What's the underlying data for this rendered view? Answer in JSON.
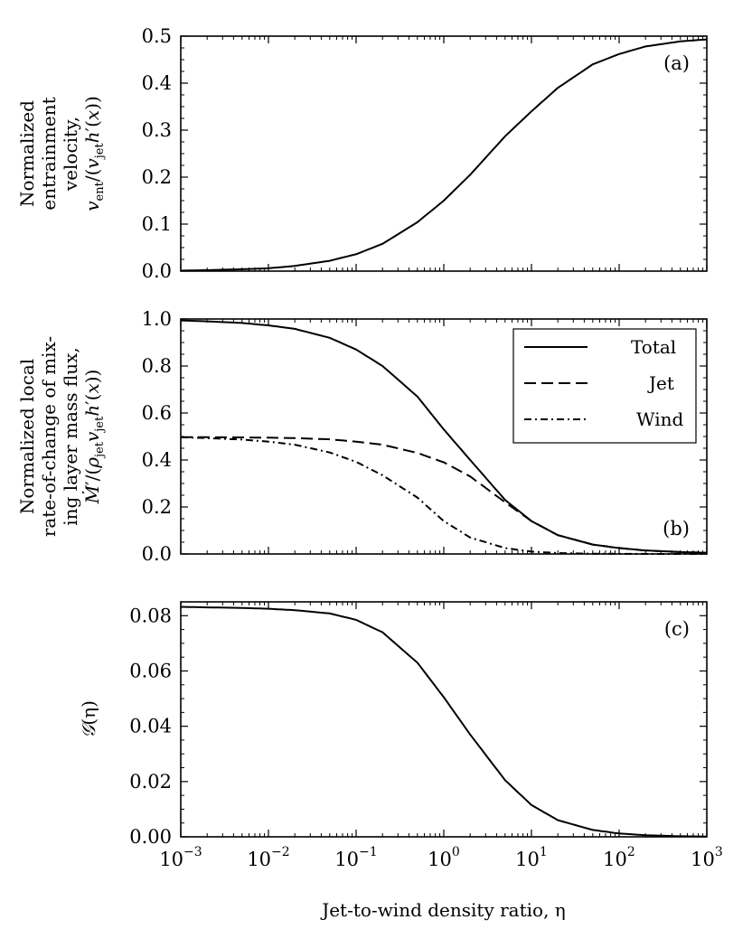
{
  "chart_data": [
    {
      "type": "line",
      "panel_tag": "(a)",
      "ylabel_lines": [
        "Normalized",
        "entrainment",
        "velocity,"
      ],
      "ylim": [
        0.0,
        0.5
      ],
      "yticks": [
        0.0,
        0.1,
        0.2,
        0.3,
        0.4,
        0.5
      ],
      "ytick_labels": [
        "0.0",
        "0.1",
        "0.2",
        "0.3",
        "0.4",
        "0.5"
      ],
      "xscale": "log",
      "xlim": [
        0.001,
        1000
      ],
      "series": [
        {
          "name": "v_ent",
          "style": "solid",
          "x": [
            0.001,
            0.002,
            0.005,
            0.01,
            0.02,
            0.05,
            0.1,
            0.2,
            0.5,
            1,
            2,
            5,
            10,
            20,
            50,
            100,
            200,
            500,
            1000
          ],
          "values": [
            0.001,
            0.002,
            0.004,
            0.006,
            0.011,
            0.022,
            0.036,
            0.058,
            0.104,
            0.15,
            0.205,
            0.287,
            0.34,
            0.39,
            0.44,
            0.462,
            0.478,
            0.489,
            0.493
          ]
        }
      ]
    },
    {
      "type": "line",
      "panel_tag": "(b)",
      "ylabel_lines": [
        "Normalized local",
        "rate-of-change of mix-",
        "ing layer mass flux,"
      ],
      "ylim": [
        0.0,
        1.0
      ],
      "yticks": [
        0.0,
        0.2,
        0.4,
        0.6,
        0.8,
        1.0
      ],
      "ytick_labels": [
        "0.0",
        "0.2",
        "0.4",
        "0.6",
        "0.8",
        "1.0"
      ],
      "xscale": "log",
      "xlim": [
        0.001,
        1000
      ],
      "legend": {
        "position": "top-right",
        "entries": [
          "Total",
          "Jet",
          "Wind"
        ]
      },
      "series": [
        {
          "name": "Total",
          "style": "solid",
          "x": [
            0.001,
            0.002,
            0.005,
            0.01,
            0.02,
            0.05,
            0.1,
            0.2,
            0.5,
            1,
            2,
            5,
            10,
            20,
            50,
            100,
            200,
            500,
            1000
          ],
          "values": [
            0.994,
            0.99,
            0.983,
            0.973,
            0.958,
            0.92,
            0.87,
            0.8,
            0.67,
            0.53,
            0.4,
            0.23,
            0.14,
            0.08,
            0.04,
            0.025,
            0.015,
            0.008,
            0.005
          ]
        },
        {
          "name": "Jet",
          "style": "dashed",
          "x": [
            0.001,
            0.002,
            0.005,
            0.01,
            0.02,
            0.05,
            0.1,
            0.2,
            0.5,
            1,
            2,
            5,
            10,
            20,
            50,
            100,
            200,
            500,
            1000
          ],
          "values": [
            0.497,
            0.497,
            0.496,
            0.495,
            0.493,
            0.488,
            0.478,
            0.465,
            0.43,
            0.39,
            0.33,
            0.22,
            0.14,
            0.08,
            0.04,
            0.025,
            0.015,
            0.008,
            0.005
          ]
        },
        {
          "name": "Wind",
          "style": "dashdot",
          "x": [
            0.001,
            0.002,
            0.005,
            0.01,
            0.02,
            0.05,
            0.1,
            0.2,
            0.5,
            1,
            2,
            5,
            10,
            20,
            50,
            100,
            200,
            500,
            1000
          ],
          "values": [
            0.497,
            0.493,
            0.487,
            0.478,
            0.465,
            0.432,
            0.392,
            0.335,
            0.24,
            0.14,
            0.07,
            0.025,
            0.01,
            0.004,
            0.001,
            0.0005,
            0.0002,
            0.0001,
            0.0
          ]
        }
      ]
    },
    {
      "type": "line",
      "panel_tag": "(c)",
      "ylabel_text": "(η)",
      "ylim": [
        0.0,
        0.085
      ],
      "yticks": [
        0.0,
        0.02,
        0.04,
        0.06,
        0.08
      ],
      "ytick_labels": [
        "0.00",
        "0.02",
        "0.04",
        "0.06",
        "0.08"
      ],
      "xscale": "log",
      "xlim": [
        0.001,
        1000
      ],
      "xtick_exponents": [
        "−3",
        "−2",
        "−1",
        "0",
        "1",
        "2",
        "3"
      ],
      "xlabel": "Jet-to-wind density ratio, η",
      "series": [
        {
          "name": "G",
          "style": "solid",
          "x": [
            0.001,
            0.002,
            0.005,
            0.01,
            0.02,
            0.05,
            0.1,
            0.2,
            0.5,
            1,
            2,
            5,
            10,
            20,
            50,
            100,
            200,
            500,
            1000
          ],
          "values": [
            0.0832,
            0.083,
            0.0828,
            0.0825,
            0.082,
            0.0808,
            0.0785,
            0.074,
            0.063,
            0.0505,
            0.037,
            0.0205,
            0.0115,
            0.006,
            0.0025,
            0.0012,
            0.0006,
            0.0002,
            0.0001
          ]
        }
      ]
    }
  ]
}
